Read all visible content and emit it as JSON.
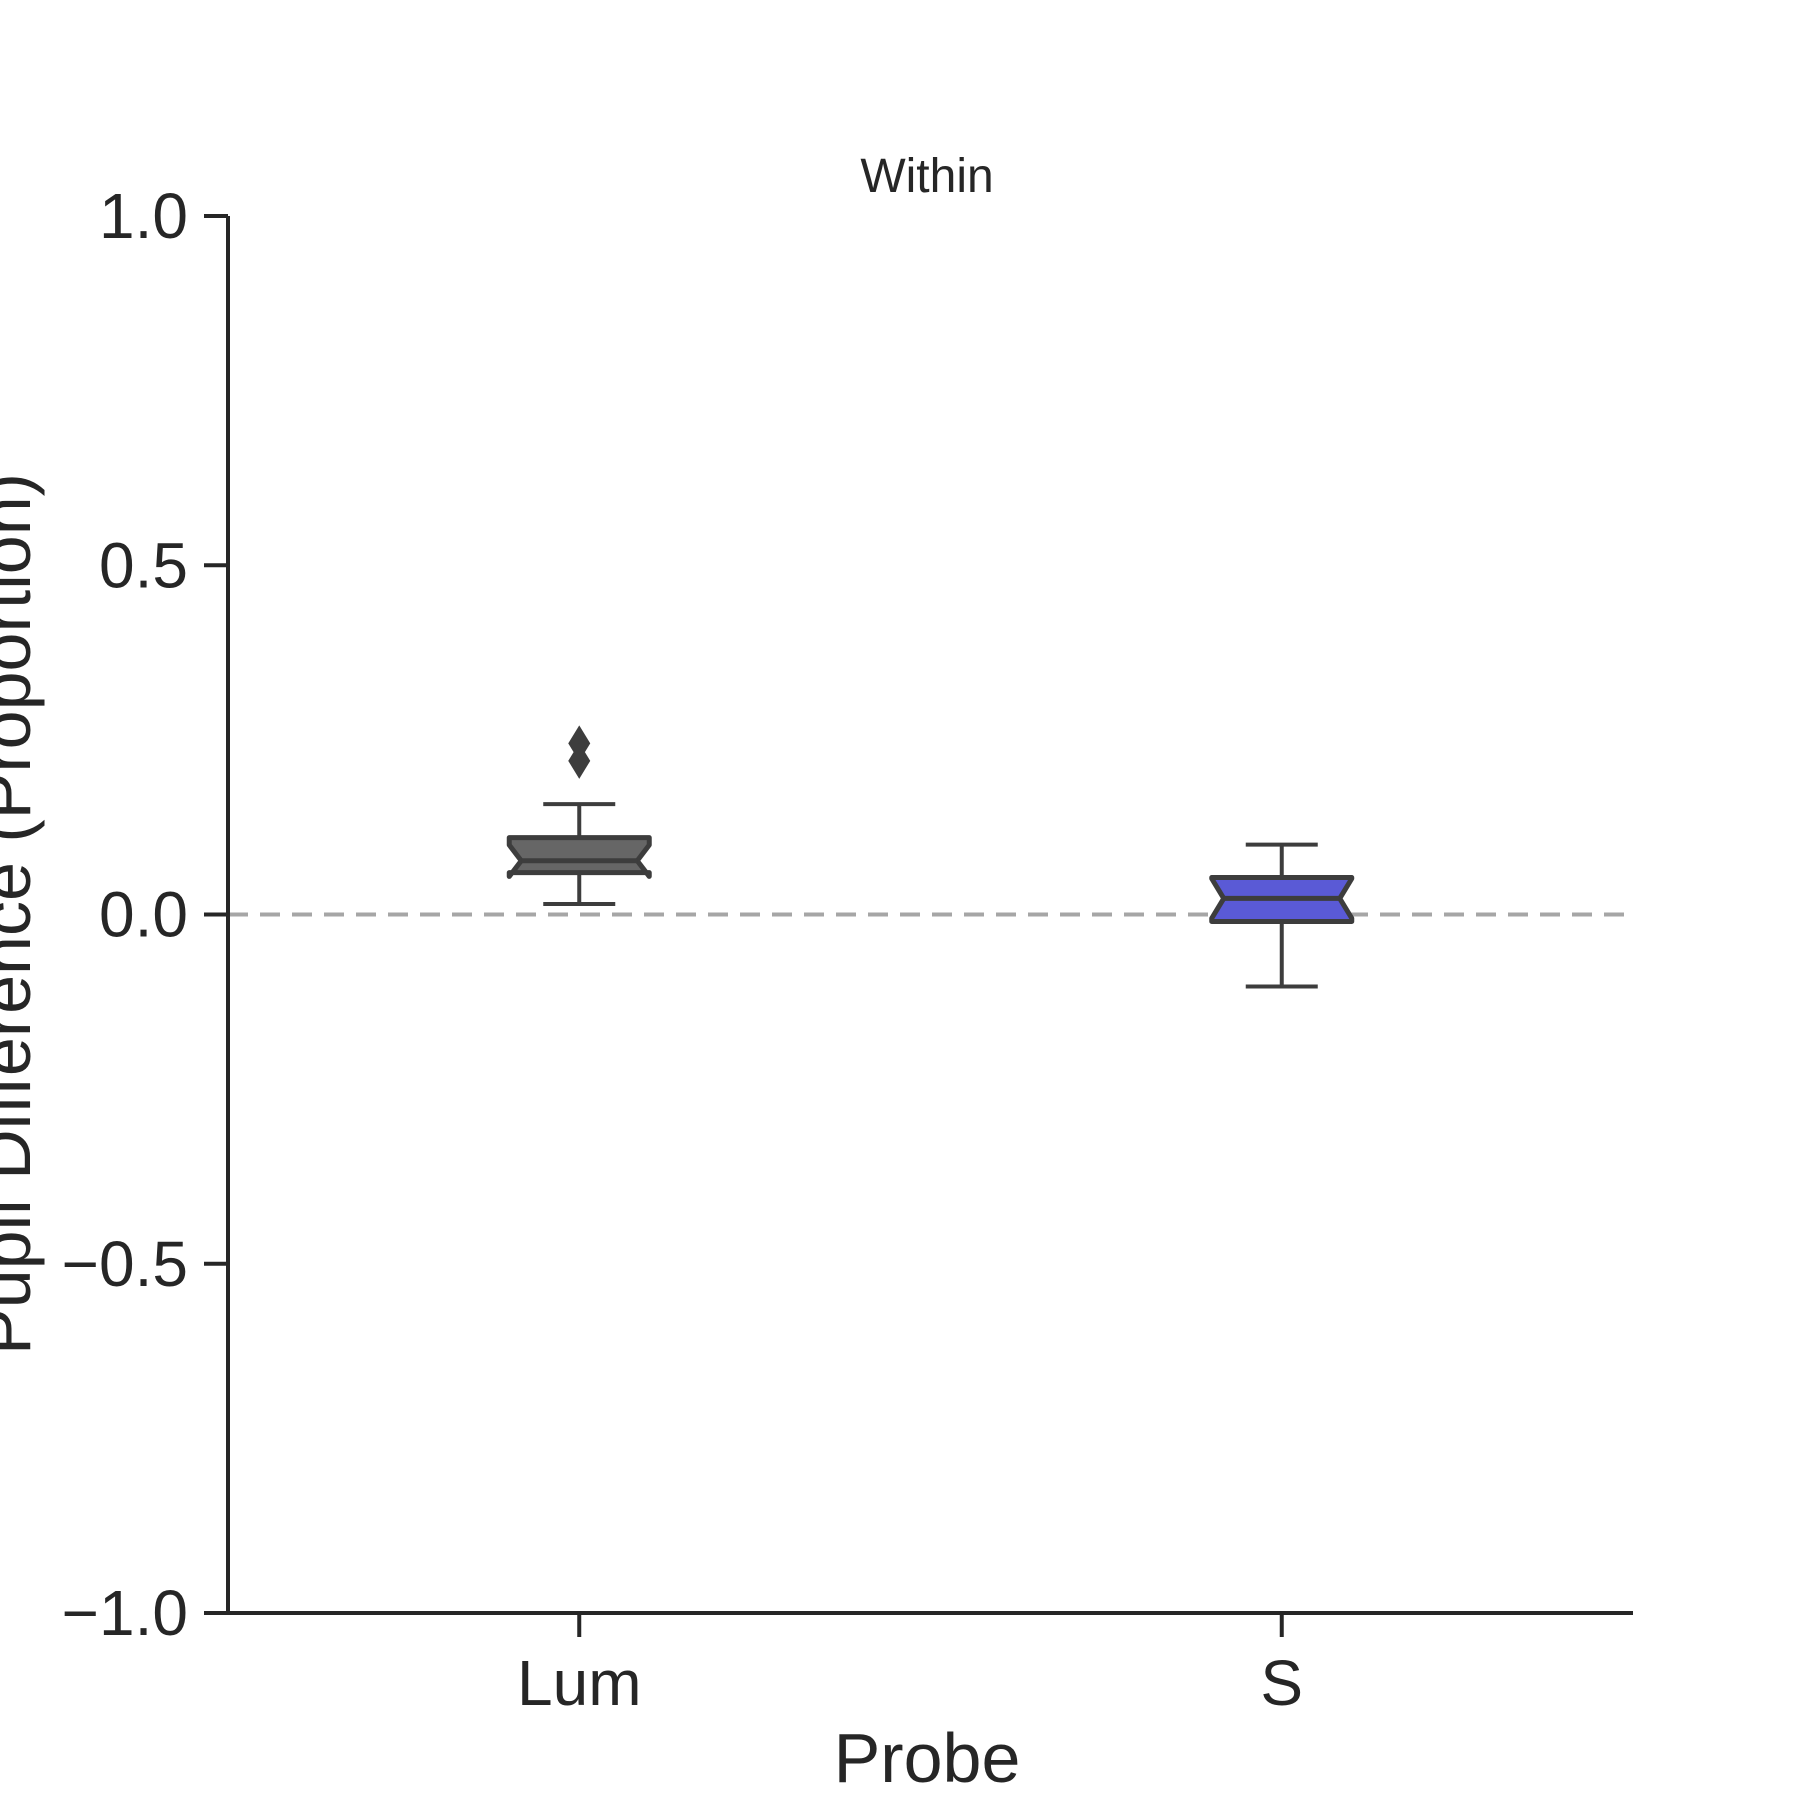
{
  "chart_data": {
    "type": "box",
    "title": "Within",
    "xlabel": "Probe",
    "ylabel": "Pupil Difference (Proportion)",
    "ylim": [
      -1.0,
      1.0
    ],
    "yticks": [
      1.0,
      0.5,
      0.0,
      -0.5,
      -1.0
    ],
    "ytick_labels": [
      "1.0",
      "0.5",
      "0.0",
      "−0.5",
      "−1.0"
    ],
    "categories": [
      "Lum",
      "S"
    ],
    "notched": true,
    "reference_line": {
      "y": 0.0,
      "style": "dashed",
      "color": "#a6a6a6"
    },
    "boxes": [
      {
        "category": "Lum",
        "color": "#666666",
        "whisker_low": 0.015,
        "q1": 0.06,
        "median": 0.077,
        "q3": 0.11,
        "whisker_high": 0.158,
        "outliers": [
          0.245,
          0.22
        ]
      },
      {
        "category": "S",
        "color": "#5a5ad6",
        "whisker_low": -0.103,
        "q1": -0.01,
        "median": 0.023,
        "q3": 0.053,
        "whisker_high": 0.1,
        "outliers": []
      }
    ]
  }
}
